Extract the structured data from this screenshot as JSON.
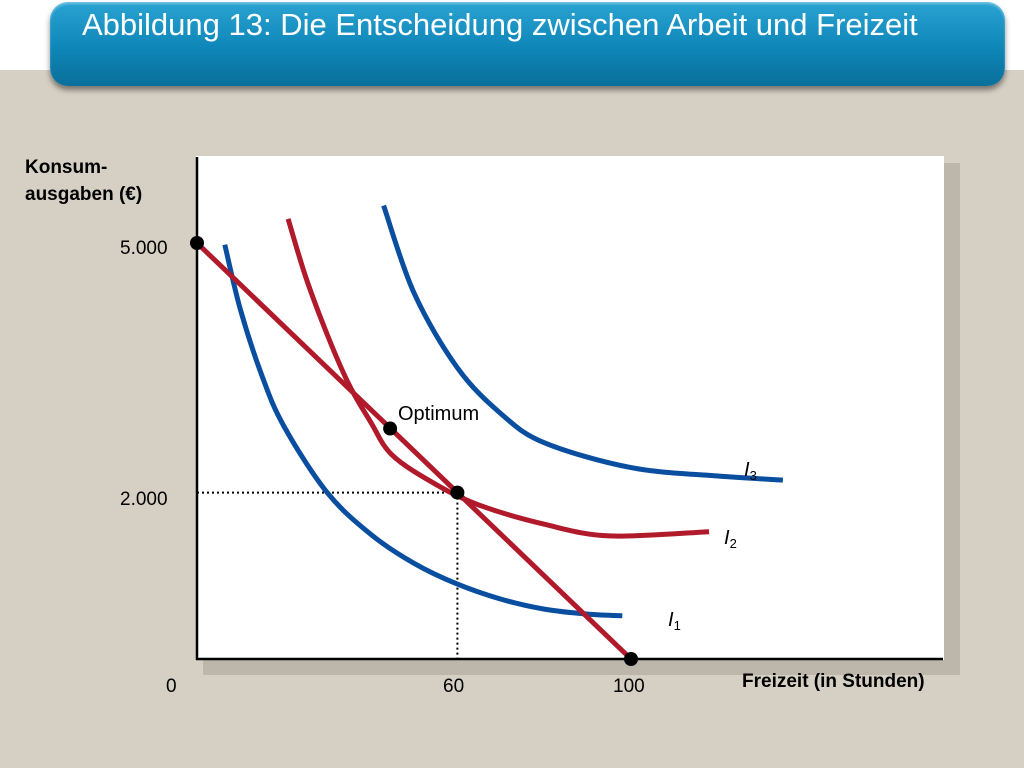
{
  "slide": {
    "title": "Abbildung 13: Die Entscheidung zwischen Arbeit und Freizeit"
  },
  "colors": {
    "title_bar": "#0e86b8",
    "background": "#d6d0c4",
    "indifference_blue": "#0a4ea0",
    "budget_red": "#b01a2a"
  },
  "chart_data": {
    "type": "line",
    "xlabel": "Freizeit (in Stunden)",
    "ylabel": "Konsum-\nausgaben (€)",
    "x_ticks": [
      "0",
      "60",
      "100"
    ],
    "y_ticks": [
      "5.000",
      "2.000"
    ],
    "xlim": [
      0,
      172
    ],
    "ylim": [
      0,
      5900
    ],
    "grid": false,
    "budget_line": {
      "color": "#b01a2a",
      "points": [
        [
          0,
          5000
        ],
        [
          100,
          0
        ]
      ]
    },
    "series": [
      {
        "name": "I1",
        "label_letter": "I",
        "label_sub": "1",
        "color": "#0a4ea0",
        "points": [
          [
            6.4,
            4980
          ],
          [
            10,
            4200
          ],
          [
            15,
            3400
          ],
          [
            20,
            2800
          ],
          [
            30,
            2000
          ],
          [
            40,
            1500
          ],
          [
            50,
            1150
          ],
          [
            60,
            900
          ],
          [
            70,
            720
          ],
          [
            80,
            600
          ],
          [
            90,
            540
          ],
          [
            98,
            520
          ]
        ]
      },
      {
        "name": "I2",
        "label_letter": "I",
        "label_sub": "2",
        "color": "#b01a2a",
        "points": [
          [
            21,
            5290
          ],
          [
            25,
            4600
          ],
          [
            30,
            3900
          ],
          [
            35,
            3300
          ],
          [
            40,
            2850
          ],
          [
            45,
            2450
          ],
          [
            55,
            2100
          ],
          [
            65,
            1850
          ],
          [
            80,
            1620
          ],
          [
            95,
            1480
          ],
          [
            118,
            1530
          ]
        ]
      },
      {
        "name": "I3",
        "label_letter": "I",
        "label_sub": "3",
        "color": "#0a4ea0",
        "points": [
          [
            43,
            5450
          ],
          [
            50,
            4400
          ],
          [
            60,
            3500
          ],
          [
            70,
            2950
          ],
          [
            80,
            2600
          ],
          [
            100,
            2300
          ],
          [
            120,
            2200
          ],
          [
            135,
            2150
          ]
        ]
      }
    ],
    "highlight_points": [
      {
        "x": 0,
        "y": 5000,
        "label": ""
      },
      {
        "x": 44.5,
        "y": 2770,
        "label": "Optimum"
      },
      {
        "x": 60,
        "y": 2000,
        "label": ""
      },
      {
        "x": 100,
        "y": 0,
        "label": ""
      }
    ],
    "guide_point": {
      "x": 60,
      "y": 2000
    }
  }
}
